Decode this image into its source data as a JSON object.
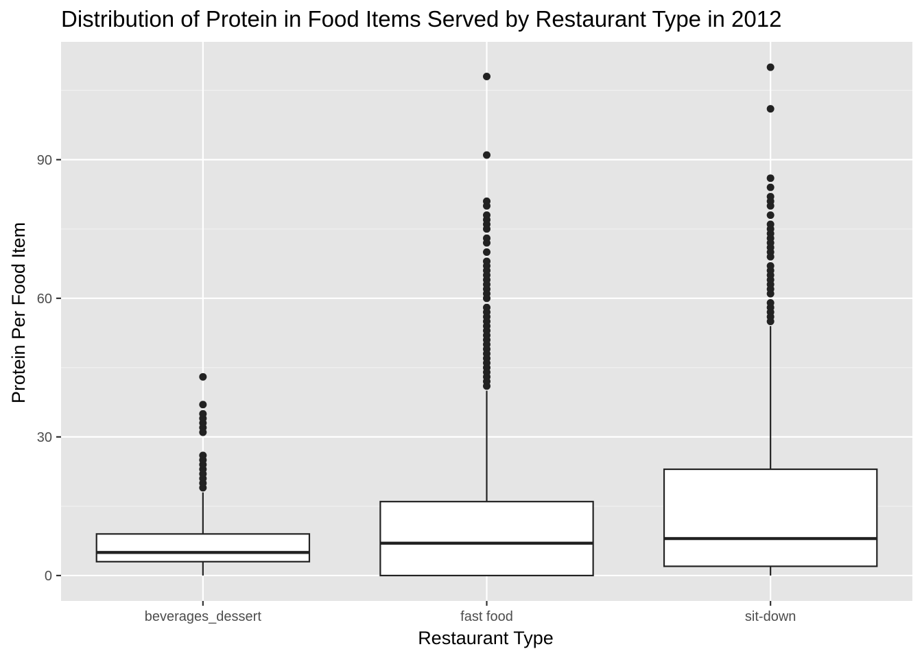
{
  "chart_data": {
    "type": "boxplot",
    "title": "Distribution of Protein in Food Items Served by Restaurant Type in 2012",
    "xlabel": "Restaurant Type",
    "ylabel": "Protein Per Food Item",
    "ylim": [
      -5.5,
      115.5
    ],
    "yticks": [
      0,
      30,
      60,
      90
    ],
    "ytick_labels": [
      "0",
      "30",
      "60",
      "90"
    ],
    "grid": true,
    "legend": "none",
    "colors": {
      "panel_background": "#e5e5e5",
      "grid_major": "#ffffff",
      "grid_minor": "#f2f2f2",
      "box_fill": "#ffffff",
      "box_stroke": "#222222",
      "outlier": "#222222",
      "tick_label": "#4d4d4d"
    },
    "categories": [
      "beverages_dessert",
      "fast food",
      "sit-down"
    ],
    "boxes": [
      {
        "category": "beverages_dessert",
        "q1": 3,
        "median": 5,
        "q3": 9,
        "whisker_low": 0,
        "whisker_high": 18,
        "outliers": [
          19,
          20,
          21,
          22,
          23,
          24,
          25,
          26,
          31,
          32,
          33,
          34,
          35,
          37,
          43
        ]
      },
      {
        "category": "fast food",
        "q1": 0,
        "median": 7,
        "q3": 16,
        "whisker_low": 0,
        "whisker_high": 40,
        "outliers": [
          41,
          42,
          43,
          44,
          45,
          46,
          47,
          48,
          49,
          50,
          51,
          52,
          53,
          54,
          55,
          56,
          57,
          58,
          60,
          61,
          62,
          63,
          64,
          65,
          66,
          67,
          68,
          70,
          72,
          73,
          75,
          76,
          77,
          78,
          80,
          81,
          91,
          108
        ]
      },
      {
        "category": "sit-down",
        "q1": 2,
        "median": 8,
        "q3": 23,
        "whisker_low": 0,
        "whisker_high": 54,
        "outliers": [
          55,
          56,
          57,
          58,
          59,
          61,
          62,
          63,
          64,
          65,
          66,
          67,
          69,
          70,
          71,
          72,
          73,
          74,
          75,
          76,
          78,
          80,
          81,
          82,
          84,
          86,
          101,
          110
        ]
      }
    ]
  }
}
